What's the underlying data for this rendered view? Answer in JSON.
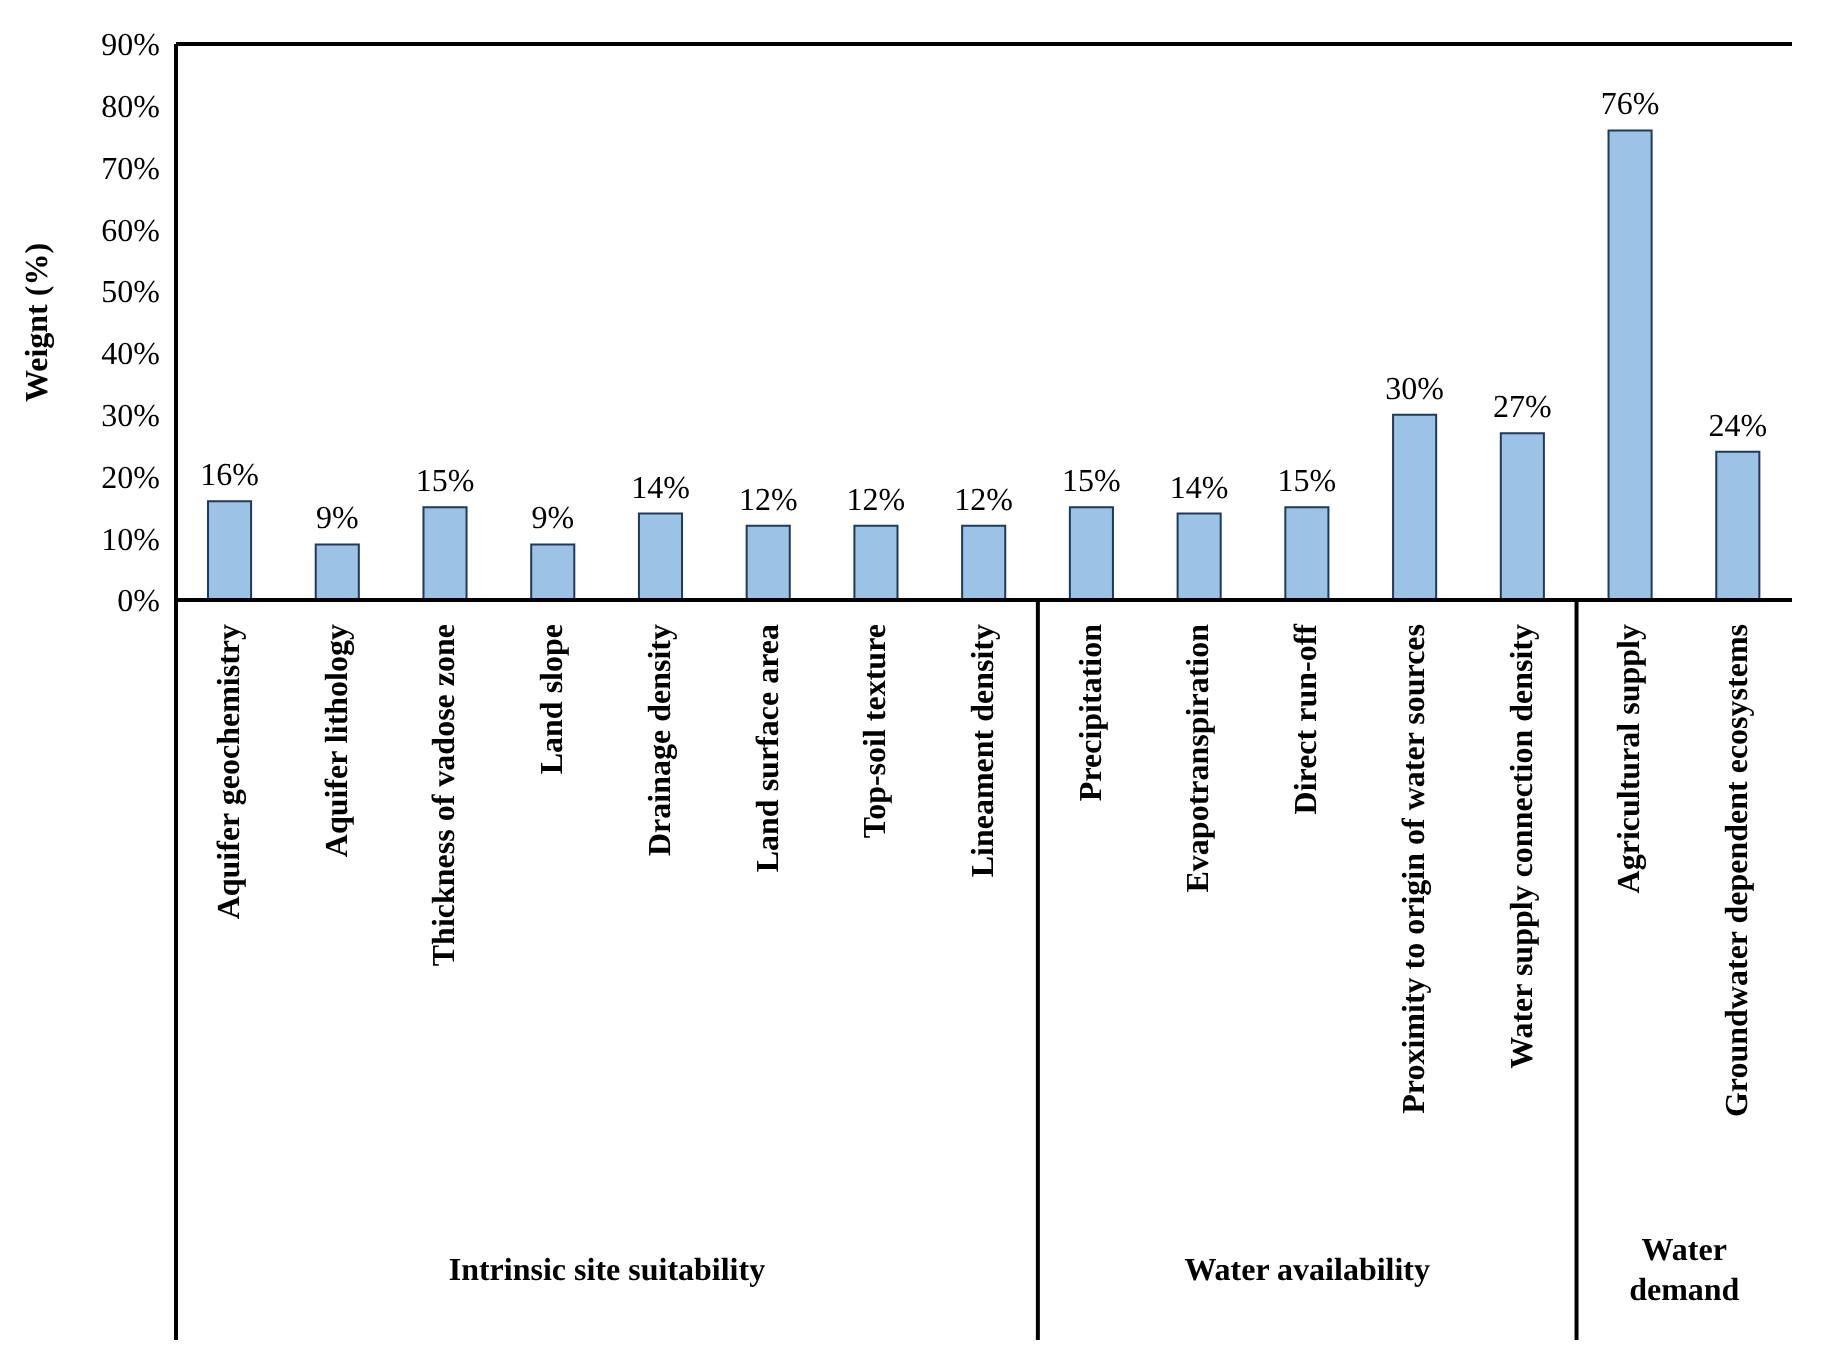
{
  "chart_data": {
    "type": "bar",
    "ylabel": "Weignt (%)",
    "categories": [
      "Aquifer geochemistry",
      "Aquifer lithology",
      "Thickness of vadose zone",
      "Land slope",
      "Drainage density",
      "Land surface area",
      "Top-soil texture",
      "Lineament density",
      "Precipitation",
      "Evapotranspiration",
      "Direct run-off",
      "Proximity to origin of water sources",
      "Water supply connection density",
      "Agricultural supply",
      "Groundwater dependent ecosystems"
    ],
    "values": [
      16,
      9,
      15,
      9,
      14,
      12,
      12,
      12,
      15,
      14,
      15,
      30,
      27,
      76,
      24
    ],
    "value_labels": [
      "16%",
      "9%",
      "15%",
      "9%",
      "14%",
      "12%",
      "12%",
      "12%",
      "15%",
      "14%",
      "15%",
      "30%",
      "27%",
      "76%",
      "24%"
    ],
    "color": "#9cc2e5",
    "ylim": [
      0,
      90
    ],
    "yticks": [
      {
        "value": 0,
        "label": "0%"
      },
      {
        "value": 10,
        "label": "10%"
      },
      {
        "value": 20,
        "label": "20%"
      },
      {
        "value": 30,
        "label": "30%"
      },
      {
        "value": 40,
        "label": "40%"
      },
      {
        "value": 50,
        "label": "50%"
      },
      {
        "value": 60,
        "label": "60%"
      },
      {
        "value": 70,
        "label": "70%"
      },
      {
        "value": 80,
        "label": "80%"
      },
      {
        "value": 90,
        "label": "90%"
      }
    ],
    "annotations": [
      "Intrinsic site suitability",
      "Water availability",
      "Water demand"
    ]
  }
}
